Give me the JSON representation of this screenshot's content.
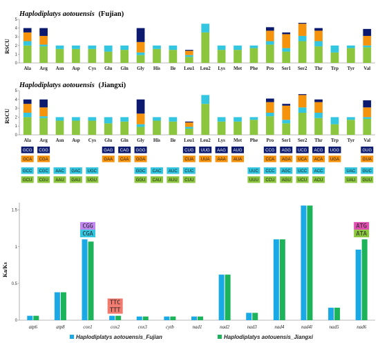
{
  "colors": {
    "navy": "#0b1a6e",
    "orange": "#f5930d",
    "cyan": "#33c6e0",
    "green": "#8cc63f",
    "fujian": "#19a9e4",
    "jiangxi": "#1db35a"
  },
  "chart_data": [
    {
      "type": "bar",
      "stacked": true,
      "title_species": "Haplodiplatys aotouensis",
      "title_suffix": "(Fujian)",
      "ylabel": "RSCU",
      "ylim": [
        0,
        5
      ],
      "yticks": [
        "0",
        "1",
        "2",
        "3",
        "4",
        "5"
      ],
      "categories": [
        "Ala",
        "Arg",
        "Asn",
        "Asp",
        "Cys",
        "Glu",
        "Gln",
        "Gly",
        "His",
        "Ile",
        "Leu1",
        "Leu2",
        "Lys",
        "Met",
        "Phe",
        "Pro",
        "Ser1",
        "Ser2",
        "Thr",
        "Trp",
        "Tyr",
        "Val"
      ],
      "stacks": [
        [
          2.0,
          0.5,
          1.0,
          0.5
        ],
        [
          1.9,
          0.2,
          1.0,
          0.9
        ],
        [
          1.6,
          0.4
        ],
        [
          1.6,
          0.4
        ],
        [
          1.6,
          0.4
        ],
        [
          1.3,
          0.7
        ],
        [
          1.5,
          0.5
        ],
        [
          0.9,
          0.3,
          1.2,
          1.6
        ],
        [
          1.6,
          0.4
        ],
        [
          1.5,
          0.5
        ],
        [
          0.7,
          0.2,
          0.5,
          0.1
        ],
        [
          3.5,
          1.0
        ],
        [
          1.5,
          0.5
        ],
        [
          1.5,
          0.5
        ],
        [
          1.7,
          0.3
        ],
        [
          2.1,
          0.4,
          1.2,
          0.4
        ],
        [
          1.3,
          0.4,
          1.6,
          0.2
        ],
        [
          2.5,
          0.6,
          1.4,
          0.1
        ],
        [
          1.9,
          0.6,
          1.2,
          0.3
        ],
        [
          1.2,
          0.8
        ],
        [
          1.7,
          0.3
        ],
        [
          1.8,
          0.2,
          1.1,
          0.8
        ]
      ]
    },
    {
      "type": "bar",
      "stacked": true,
      "title_species": "Haplodiplatys aotouensis",
      "title_suffix": "(Jiangxi)",
      "ylabel": "RSCU",
      "ylim": [
        0,
        5
      ],
      "yticks": [
        "0",
        "1",
        "2",
        "3",
        "4",
        "5"
      ],
      "categories": [
        "Ala",
        "Arg",
        "Asn",
        "Asp",
        "Cys",
        "Glu",
        "Gln",
        "Gly",
        "His",
        "Ile",
        "Leu1",
        "Leu2",
        "Lys",
        "Met",
        "Phe",
        "Pro",
        "Ser1",
        "Ser2",
        "Thr",
        "Trp",
        "Tyr",
        "Val"
      ],
      "stacks": [
        [
          2.0,
          0.5,
          1.0,
          0.5
        ],
        [
          1.9,
          0.2,
          1.0,
          0.9
        ],
        [
          1.6,
          0.4
        ],
        [
          1.6,
          0.4
        ],
        [
          1.6,
          0.4
        ],
        [
          1.3,
          0.7
        ],
        [
          1.5,
          0.5
        ],
        [
          0.9,
          0.3,
          1.2,
          1.6
        ],
        [
          1.6,
          0.4
        ],
        [
          1.5,
          0.5
        ],
        [
          0.7,
          0.2,
          0.5,
          0.1
        ],
        [
          3.5,
          1.0
        ],
        [
          1.5,
          0.5
        ],
        [
          1.5,
          0.5
        ],
        [
          1.7,
          0.3
        ],
        [
          2.1,
          0.4,
          1.2,
          0.4
        ],
        [
          1.3,
          0.4,
          1.6,
          0.2
        ],
        [
          2.5,
          0.6,
          1.4,
          0.1
        ],
        [
          1.9,
          0.6,
          1.2,
          0.3
        ],
        [
          1.2,
          0.8
        ],
        [
          1.7,
          0.3
        ],
        [
          1.8,
          0.2,
          1.1,
          0.8
        ]
      ]
    },
    {
      "type": "table",
      "columns": [
        [
          "GCG",
          "GCA",
          "GCC",
          "GCU"
        ],
        [
          "CGG",
          "CGA",
          "CGC",
          "CGU"
        ],
        [
          "AAC",
          "AAU"
        ],
        [
          "GAC",
          "GAU"
        ],
        [
          "UGC",
          "UGU"
        ],
        [
          "GAG",
          "GAA"
        ],
        [
          "CAG",
          "CAA"
        ],
        [
          "GGG",
          "GGA",
          "GGC",
          "GGU"
        ],
        [
          "CAC",
          "CAU"
        ],
        [
          "AUC",
          "AUU"
        ],
        [
          "CUG",
          "CUA",
          "CUC",
          "CUU"
        ],
        [
          "UUG",
          "UUA"
        ],
        [
          "AAG",
          "AAA"
        ],
        [
          "AUG",
          "AUA"
        ],
        [
          "UUC",
          "UUU"
        ],
        [
          "CCG",
          "CCA",
          "CCC",
          "CCU"
        ],
        [
          "AGG",
          "AGA",
          "AGC",
          "AGU"
        ],
        [
          "UCG",
          "UCA",
          "UCC",
          "UCU"
        ],
        [
          "ACG",
          "ACA",
          "ACC",
          "ACU"
        ],
        [
          "UGG",
          "UGA"
        ],
        [
          "UAC",
          "UAU"
        ],
        [
          "GUG",
          "GUA",
          "GUC",
          "GUU"
        ]
      ]
    },
    {
      "type": "bar",
      "ylabel": "Ka/Ks",
      "ylim": [
        0,
        1.6
      ],
      "yticks": [
        "0",
        "0.5",
        "1",
        "1.5"
      ],
      "categories": [
        "atp6",
        "atp8",
        "cox1",
        "cox2",
        "cox3",
        "cytb",
        "nad1",
        "nad2",
        "nad3",
        "nad4",
        "nad4l",
        "nad5",
        "nad6"
      ],
      "series": [
        {
          "name": "Haplodiplatys aotouensis_Fujian",
          "values": [
            0.06,
            0.38,
            1.1,
            0.06,
            0.05,
            0.05,
            0.05,
            0.62,
            0.1,
            1.1,
            1.56,
            0.17,
            0.96
          ]
        },
        {
          "name": "Haplodiplatys aotouensis_Jiangxi",
          "values": [
            0.06,
            0.38,
            1.07,
            0.06,
            0.05,
            0.05,
            0.05,
            0.62,
            0.1,
            1.1,
            1.56,
            0.17,
            1.1
          ]
        }
      ],
      "annotations": [
        {
          "gene": "cox1",
          "codons": [
            "CGG",
            "CGA"
          ],
          "colors": [
            "#c187f0",
            "#33c6e0"
          ]
        },
        {
          "gene": "cox2",
          "codons": [
            "TTC",
            "TTT"
          ],
          "colors": [
            "#f07a6e",
            "#f07a6e"
          ]
        },
        {
          "gene": "nad6",
          "codons": [
            "ATG",
            "ATA"
          ],
          "colors": [
            "#e04fb0",
            "#8cc63f"
          ]
        }
      ]
    }
  ]
}
